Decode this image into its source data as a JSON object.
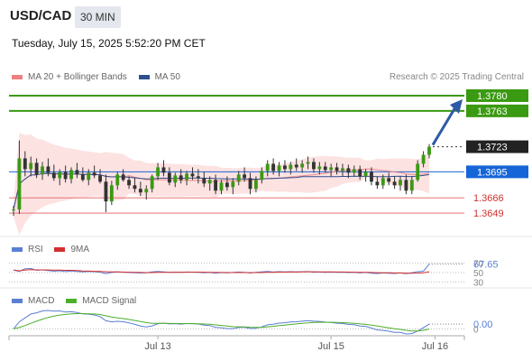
{
  "header": {
    "symbol": "USD/CAD",
    "timeframe": "30 MIN",
    "datetime": "Tuesday, July 15, 2025 5:52:20 PM CET"
  },
  "legend_main": [
    {
      "label": "MA 20 + Bollinger Bands",
      "color": "#f08080"
    },
    {
      "label": "MA 50",
      "color": "#2f4f8f"
    }
  ],
  "legend_rsi": [
    {
      "label": "RSI",
      "color": "#5b7fd4"
    },
    {
      "label": "9MA",
      "color": "#d32f2f"
    }
  ],
  "legend_macd": [
    {
      "label": "MACD",
      "color": "#5b7fd4"
    },
    {
      "label": "MACD Signal",
      "color": "#4caf2a"
    }
  ],
  "credit": "Research © 2025 Trading Central",
  "chart_data": {
    "type": "candlestick",
    "price_range": [
      1.3635,
      1.3786
    ],
    "levels": [
      {
        "value": 1.378,
        "label": "1.3780",
        "color": "#3a9a12",
        "kind": "resistance"
      },
      {
        "value": 1.3763,
        "label": "1.3763",
        "color": "#3a9a12",
        "kind": "resistance"
      },
      {
        "value": 1.3723,
        "label": "1.3723",
        "color": "#222222",
        "kind": "last"
      },
      {
        "value": 1.3695,
        "label": "1.3695",
        "color": "#1565d8",
        "kind": "pivot"
      },
      {
        "value": 1.3666,
        "label": "1.3666",
        "color": "#d32f2f",
        "kind": "support"
      },
      {
        "value": 1.3649,
        "label": "1.3649",
        "color": "#d32f2f",
        "kind": "support"
      }
    ],
    "x_labels": [
      {
        "label": "Jul 13",
        "index": 25
      },
      {
        "label": "Jul 15",
        "index": 55
      },
      {
        "label": "Jul 16",
        "index": 73
      }
    ],
    "candles": [
      [
        1.3652,
        1.3657,
        1.3646,
        1.3653
      ],
      [
        1.3653,
        1.373,
        1.3648,
        1.371
      ],
      [
        1.371,
        1.3718,
        1.369,
        1.3698
      ],
      [
        1.3698,
        1.3712,
        1.369,
        1.3705
      ],
      [
        1.3705,
        1.371,
        1.3688,
        1.3692
      ],
      [
        1.3692,
        1.3706,
        1.3686,
        1.3701
      ],
      [
        1.3701,
        1.371,
        1.369,
        1.3694
      ],
      [
        1.3694,
        1.3703,
        1.3685,
        1.3688
      ],
      [
        1.3688,
        1.3698,
        1.368,
        1.3695
      ],
      [
        1.3695,
        1.3702,
        1.3683,
        1.3687
      ],
      [
        1.3687,
        1.37,
        1.3682,
        1.3697
      ],
      [
        1.3697,
        1.3705,
        1.3688,
        1.3692
      ],
      [
        1.3692,
        1.37,
        1.3684,
        1.3686
      ],
      [
        1.3686,
        1.3698,
        1.368,
        1.3694
      ],
      [
        1.3694,
        1.3702,
        1.3688,
        1.3691
      ],
      [
        1.3691,
        1.3698,
        1.3682,
        1.3684
      ],
      [
        1.3684,
        1.3692,
        1.365,
        1.3662
      ],
      [
        1.3662,
        1.3685,
        1.3658,
        1.368
      ],
      [
        1.368,
        1.3695,
        1.3675,
        1.3692
      ],
      [
        1.3692,
        1.3698,
        1.3684,
        1.3686
      ],
      [
        1.3686,
        1.369,
        1.3676,
        1.368
      ],
      [
        1.368,
        1.3688,
        1.3672,
        1.3676
      ],
      [
        1.3676,
        1.3684,
        1.3668,
        1.3672
      ],
      [
        1.3672,
        1.368,
        1.3664,
        1.3676
      ],
      [
        1.3676,
        1.3692,
        1.3672,
        1.369
      ],
      [
        1.369,
        1.3705,
        1.3686,
        1.37
      ],
      [
        1.37,
        1.3708,
        1.369,
        1.3694
      ],
      [
        1.3694,
        1.37,
        1.368,
        1.3683
      ],
      [
        1.3683,
        1.3694,
        1.3678,
        1.3691
      ],
      [
        1.3691,
        1.3698,
        1.3682,
        1.3686
      ],
      [
        1.3686,
        1.3696,
        1.368,
        1.3693
      ],
      [
        1.3693,
        1.37,
        1.3686,
        1.369
      ],
      [
        1.369,
        1.3698,
        1.3682,
        1.3688
      ],
      [
        1.3688,
        1.3695,
        1.3678,
        1.3682
      ],
      [
        1.3682,
        1.369,
        1.3674,
        1.3686
      ],
      [
        1.3686,
        1.3692,
        1.367,
        1.3674
      ],
      [
        1.3674,
        1.3686,
        1.367,
        1.3683
      ],
      [
        1.3683,
        1.369,
        1.3674,
        1.3678
      ],
      [
        1.3678,
        1.3688,
        1.367,
        1.3684
      ],
      [
        1.3684,
        1.3696,
        1.368,
        1.3692
      ],
      [
        1.3692,
        1.37,
        1.3684,
        1.3688
      ],
      [
        1.3688,
        1.3694,
        1.367,
        1.3676
      ],
      [
        1.3676,
        1.369,
        1.3672,
        1.3686
      ],
      [
        1.3686,
        1.37,
        1.3682,
        1.3696
      ],
      [
        1.3696,
        1.3708,
        1.369,
        1.3704
      ],
      [
        1.3704,
        1.371,
        1.3692,
        1.3696
      ],
      [
        1.3696,
        1.3706,
        1.369,
        1.3702
      ],
      [
        1.3702,
        1.3708,
        1.3694,
        1.3698
      ],
      [
        1.3698,
        1.3706,
        1.3692,
        1.3703
      ],
      [
        1.3703,
        1.371,
        1.3696,
        1.37
      ],
      [
        1.37,
        1.3708,
        1.3694,
        1.3704
      ],
      [
        1.3704,
        1.3712,
        1.3698,
        1.3706
      ],
      [
        1.3706,
        1.371,
        1.3694,
        1.3698
      ],
      [
        1.3698,
        1.3706,
        1.3692,
        1.3701
      ],
      [
        1.3701,
        1.3706,
        1.3694,
        1.3697
      ],
      [
        1.3697,
        1.3704,
        1.369,
        1.37
      ],
      [
        1.37,
        1.3705,
        1.3692,
        1.3696
      ],
      [
        1.3696,
        1.3704,
        1.369,
        1.3699
      ],
      [
        1.3699,
        1.3703,
        1.3688,
        1.3694
      ],
      [
        1.3694,
        1.3702,
        1.369,
        1.3698
      ],
      [
        1.3698,
        1.3702,
        1.3686,
        1.369
      ],
      [
        1.369,
        1.3698,
        1.3684,
        1.3695
      ],
      [
        1.3695,
        1.37,
        1.368,
        1.3684
      ],
      [
        1.3684,
        1.369,
        1.3676,
        1.368
      ],
      [
        1.368,
        1.3692,
        1.3676,
        1.3688
      ],
      [
        1.3688,
        1.3694,
        1.368,
        1.3684
      ],
      [
        1.3684,
        1.369,
        1.3676,
        1.368
      ],
      [
        1.368,
        1.369,
        1.3674,
        1.3686
      ],
      [
        1.3686,
        1.3692,
        1.367,
        1.3674
      ],
      [
        1.3674,
        1.369,
        1.367,
        1.3686
      ],
      [
        1.3686,
        1.3708,
        1.3684,
        1.3704
      ],
      [
        1.3704,
        1.3718,
        1.37,
        1.3714
      ],
      [
        1.3714,
        1.3726,
        1.371,
        1.3723
      ]
    ],
    "rsi_levels": [
      70,
      50,
      30
    ],
    "rsi_last": "67.65",
    "macd_last": "0.00",
    "macd_zero_label": "0"
  }
}
